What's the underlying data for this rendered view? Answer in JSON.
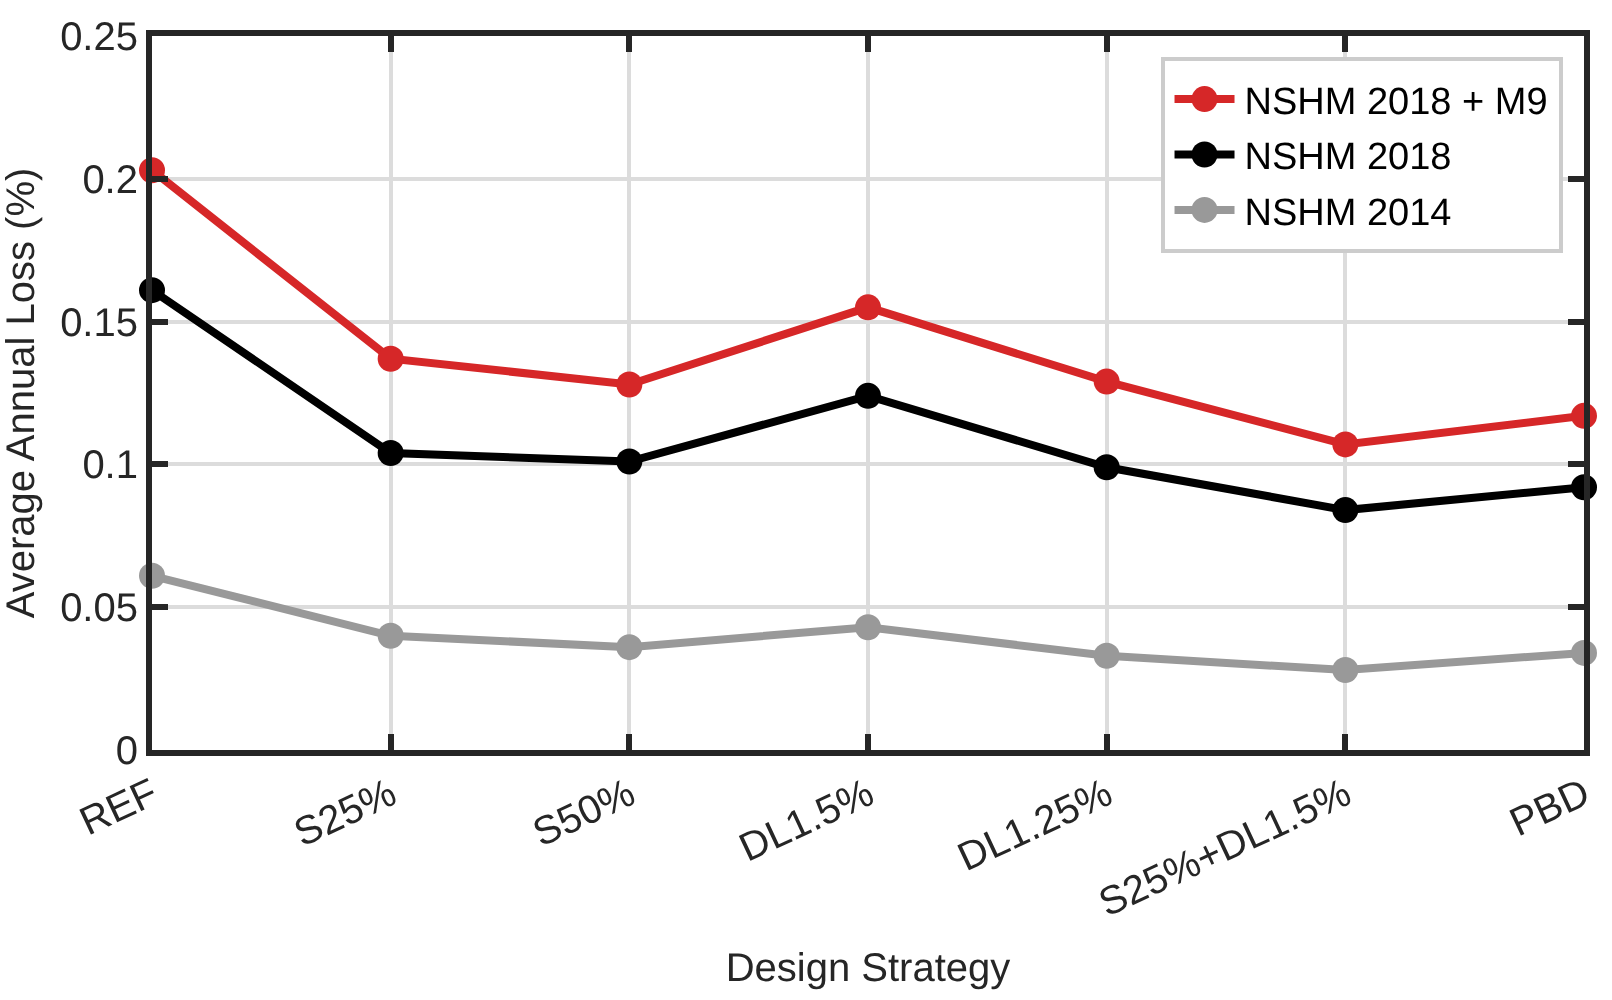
{
  "chart_data": {
    "type": "line",
    "xlabel": "Design Strategy",
    "ylabel": "Average Annual Loss (%)",
    "categories": [
      "REF",
      "S25%",
      "S50%",
      "DL1.5%",
      "DL1.25%",
      "S25%+DL1.5%",
      "PBD"
    ],
    "series": [
      {
        "name": "NSHM 2018 + M9",
        "color": "#d62728",
        "values": [
          0.203,
          0.137,
          0.128,
          0.155,
          0.129,
          0.107,
          0.117
        ]
      },
      {
        "name": "NSHM 2018",
        "color": "#000000",
        "values": [
          0.161,
          0.104,
          0.101,
          0.124,
          0.099,
          0.084,
          0.092
        ]
      },
      {
        "name": "NSHM 2014",
        "color": "#999999",
        "values": [
          0.061,
          0.04,
          0.036,
          0.043,
          0.033,
          0.028,
          0.034
        ]
      }
    ],
    "ylim": [
      0,
      0.25
    ],
    "yticks": [
      0,
      0.05,
      0.1,
      0.15,
      0.2,
      0.25
    ],
    "grid": true,
    "legend": "top right",
    "marker": "circle",
    "line_style": "solid"
  }
}
